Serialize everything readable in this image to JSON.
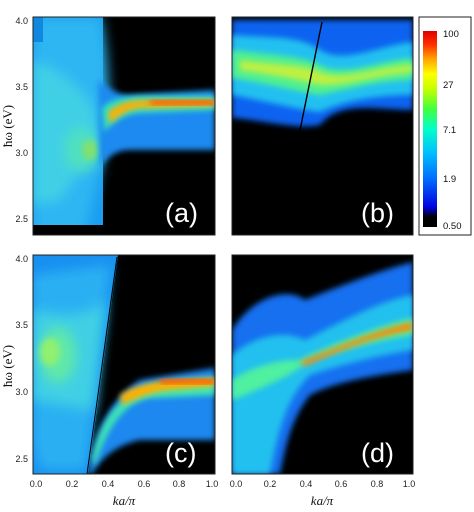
{
  "chart_data": {
    "type": "heatmap",
    "colorscale": {
      "ticks": [
        "100",
        "27",
        "7.1",
        "1.9",
        "0.50"
      ],
      "colors": [
        "#000000",
        "#0000e0",
        "#0070ff",
        "#00c0ff",
        "#00ffc8",
        "#40ff40",
        "#c0ff00",
        "#ffff00",
        "#ffa000",
        "#ff3000",
        "#e00000"
      ]
    },
    "xlabel": "ka/π",
    "ylabel": "ħω (eV)",
    "x_ticks": [
      "0.0",
      "0.2",
      "0.4",
      "0.6",
      "0.8",
      "1.0"
    ],
    "y_ticks": [
      "2.5",
      "3.0",
      "3.5",
      "4.0"
    ],
    "xlim": [
      0,
      1
    ],
    "ylim": [
      2.4,
      4.05
    ],
    "panels": [
      {
        "label": "(a)",
        "row": 0,
        "col": 0,
        "crossing_k": 0.38,
        "band_low_eV": 3.0,
        "band_high_eV": 3.38
      },
      {
        "label": "(b)",
        "row": 0,
        "col": 1,
        "crossing_k": 0.42,
        "band_low_eV": 3.45,
        "band_high_eV": 3.65
      },
      {
        "label": "(c)",
        "row": 1,
        "col": 0,
        "crossing_k": 0.3,
        "band_low_eV": 2.5,
        "band_high_eV": 3.1
      },
      {
        "label": "(d)",
        "row": 1,
        "col": 1,
        "crossing_k": 0.42,
        "band_low_eV": 3.05,
        "band_high_eV": 3.5
      }
    ]
  }
}
